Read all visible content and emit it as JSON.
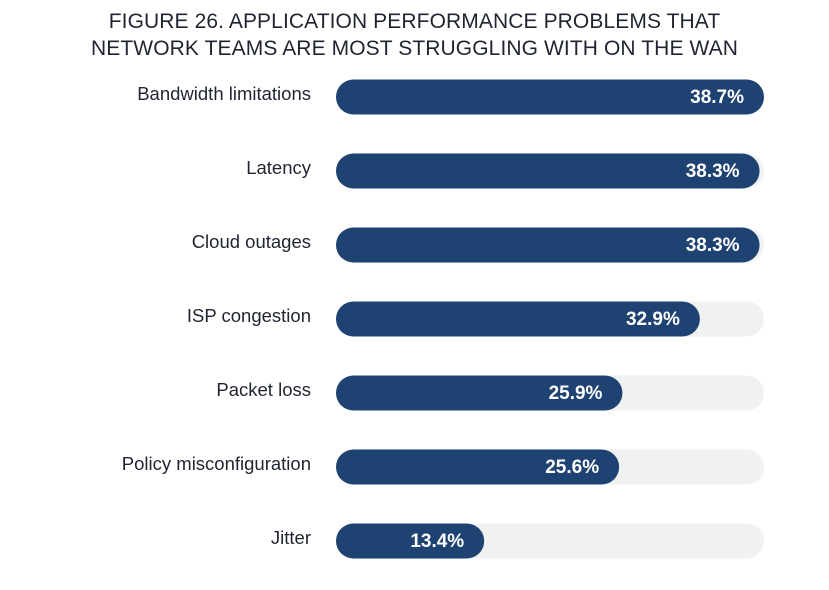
{
  "chart_data": {
    "type": "bar",
    "orientation": "horizontal",
    "title_lines": [
      "FIGURE 26. APPLICATION PERFORMANCE PROBLEMS THAT",
      "NETWORK TEAMS ARE MOST STRUGGLING WITH ON THE WAN"
    ],
    "categories": [
      "Bandwidth limitations",
      "Latency",
      "Cloud outages",
      "ISP congestion",
      "Packet loss",
      "Policy misconfiguration",
      "Jitter"
    ],
    "values": [
      38.7,
      38.3,
      38.3,
      32.9,
      25.9,
      25.6,
      13.4
    ],
    "value_labels": [
      "38.7%",
      "38.3%",
      "38.3%",
      "32.9%",
      "25.9%",
      "25.6%",
      "13.4%"
    ],
    "xlim": [
      0,
      38.7
    ],
    "xlabel": "",
    "ylabel": "",
    "grid": false
  },
  "colors": {
    "bar_fill": "#1e4271",
    "track_fill": "#f0f2f1",
    "label_text": "#1f2430",
    "value_text": "#ffffff"
  }
}
